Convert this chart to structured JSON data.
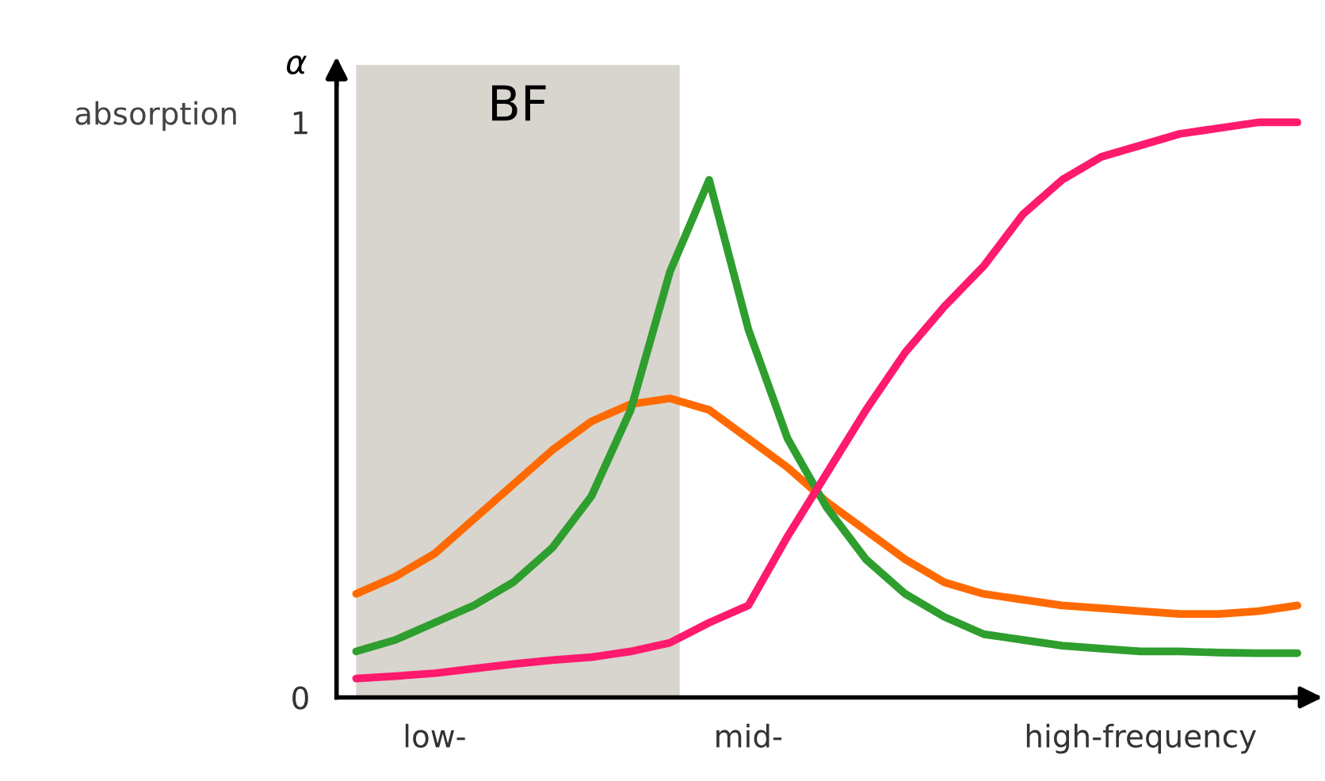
{
  "chart_data": {
    "type": "line",
    "ylabel": "α",
    "annotations": [
      "absorption",
      "BF"
    ],
    "categories": [
      null,
      null,
      "low-",
      null,
      null,
      null,
      null,
      null,
      null,
      null,
      "mid-",
      null,
      null,
      null,
      null,
      null,
      null,
      null,
      null,
      null,
      "high-frequency",
      null,
      null,
      null,
      null
    ],
    "ylim": [
      0,
      1.1
    ],
    "yticks": [
      0,
      1
    ],
    "grid": false,
    "legend": false,
    "marker": "none",
    "line_style": "solid",
    "series": [
      {
        "color": "#ff6a00",
        "values": [
          0.18,
          0.21,
          0.25,
          0.31,
          0.37,
          0.43,
          0.48,
          0.51,
          0.52,
          0.5,
          0.45,
          0.4,
          0.34,
          0.29,
          0.24,
          0.2,
          0.18,
          0.17,
          0.16,
          0.155,
          0.15,
          0.145,
          0.145,
          0.15,
          0.16
        ]
      },
      {
        "color": "#2e9e2e",
        "values": [
          0.08,
          0.1,
          0.13,
          0.16,
          0.2,
          0.26,
          0.35,
          0.5,
          0.74,
          0.9,
          0.64,
          0.45,
          0.33,
          0.24,
          0.18,
          0.14,
          0.11,
          0.1,
          0.09,
          0.085,
          0.08,
          0.08,
          0.078,
          0.077,
          0.077
        ]
      },
      {
        "color": "#ff1a6e",
        "values": [
          0.033,
          0.037,
          0.042,
          0.05,
          0.058,
          0.065,
          0.07,
          0.08,
          0.095,
          0.13,
          0.16,
          0.28,
          0.39,
          0.5,
          0.6,
          0.68,
          0.75,
          0.84,
          0.9,
          0.94,
          0.96,
          0.98,
          0.99,
          1.0,
          1.0
        ]
      }
    ]
  }
}
